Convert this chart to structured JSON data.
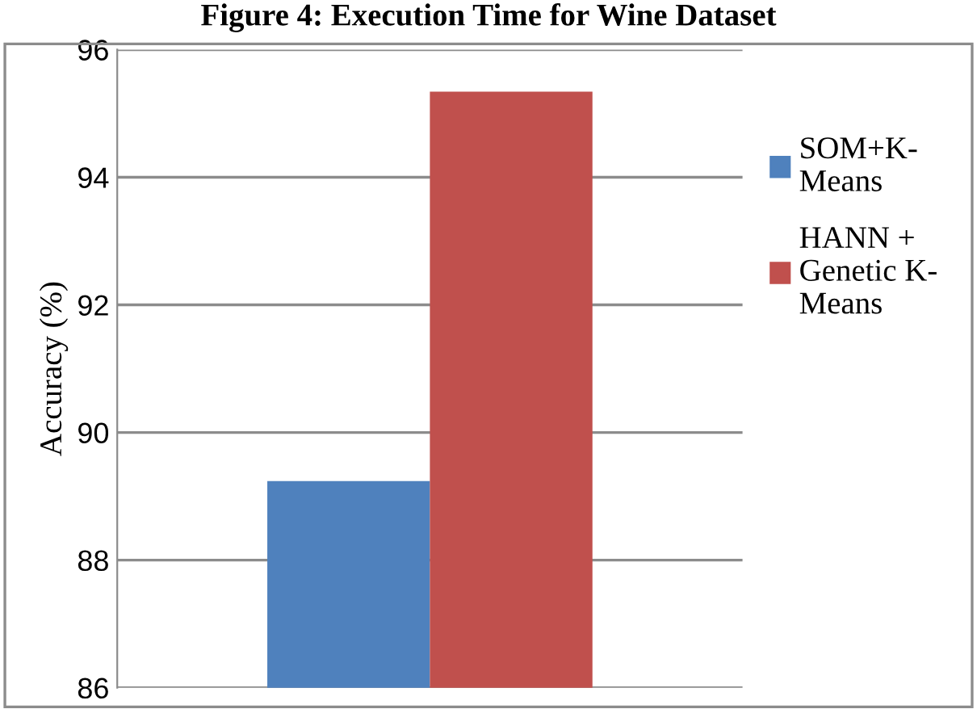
{
  "chart_data": {
    "type": "bar",
    "title": "Figure 4: Execution Time for Wine Dataset",
    "ylabel": "Accuracy (%)",
    "categories": [
      null
    ],
    "series": [
      {
        "name": "SOM+K-\nMeans",
        "color": "#4f81bd",
        "values": [
          89.24
        ]
      },
      {
        "name": "HANN +\nGenetic K-\nMeans",
        "color": "#c0504d",
        "values": [
          95.34
        ]
      }
    ],
    "ylim": [
      86,
      96
    ],
    "yticks": [
      86,
      88,
      90,
      92,
      94,
      96
    ],
    "grid": "y",
    "legend": "right"
  }
}
